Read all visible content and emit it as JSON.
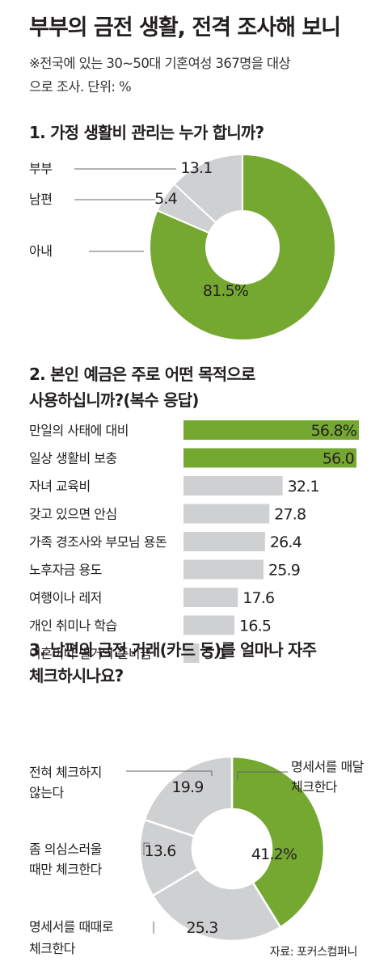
{
  "title": "부부의 금전 생활, 전격 조사해 보니",
  "note_lines": [
    "※전국에 있는 30~50대 기혼여성 367명을 대상",
    "으로 조사. 단위: %"
  ],
  "source": "자료: 포커스컴퍼니",
  "colors": {
    "green": "#75a831",
    "gray": "#cfd0d2",
    "separator": "#ffffff"
  },
  "chart_data": [
    {
      "type": "pie",
      "title": "1. 가정 생활비 관리는 누가 합니까?",
      "categories": [
        "아내",
        "남편",
        "부부"
      ],
      "values": [
        81.5,
        5.4,
        13.1
      ],
      "value_labels": [
        "81.5%",
        "5.4",
        "13.1"
      ]
    },
    {
      "type": "bar",
      "orientation": "horizontal",
      "title_lines": [
        "2. 본인 예금은 주로 어떤 목적으로",
        "사용하십니까?(복수 응답)"
      ],
      "categories": [
        "만일의 사태에 대비",
        "일상 생활비 보충",
        "자녀 교육비",
        "갖고 있으면 안심",
        "가족 경조사와 부모님 용돈",
        "노후자금 용도",
        "여행이나 레저",
        "개인 취미나 학습",
        "이혼이나 별거의 준비금"
      ],
      "values": [
        56.8,
        56.0,
        32.1,
        27.8,
        26.4,
        25.9,
        17.6,
        16.5,
        5.1
      ],
      "value_labels": [
        "56.8%",
        "56.0",
        "32.1",
        "27.8",
        "26.4",
        "25.9",
        "17.6",
        "16.5",
        "5.1"
      ],
      "highlighted": [
        true,
        true,
        false,
        false,
        false,
        false,
        false,
        false,
        false
      ]
    },
    {
      "type": "pie",
      "title_lines": [
        "3. 남편의 금전 거래(카드 등)를 얼마나 자주",
        "체크하시나요?"
      ],
      "categories": [
        "명세서를 매달 체크한다",
        "명세서를 때때로 체크한다",
        "좀 의심스러울 때만 체크한다",
        "전혀 체크하지 않는다"
      ],
      "label_lines": [
        [
          "명세서를 매달",
          "체크한다"
        ],
        [
          "명세서를 때때로",
          "체크한다"
        ],
        [
          "좀 의심스러울",
          "때만 체크한다"
        ],
        [
          "전혀 체크하지",
          "않는다"
        ]
      ],
      "values": [
        41.2,
        25.3,
        13.6,
        19.9
      ],
      "value_labels": [
        "41.2%",
        "25.3",
        "13.6",
        "19.9"
      ]
    }
  ]
}
